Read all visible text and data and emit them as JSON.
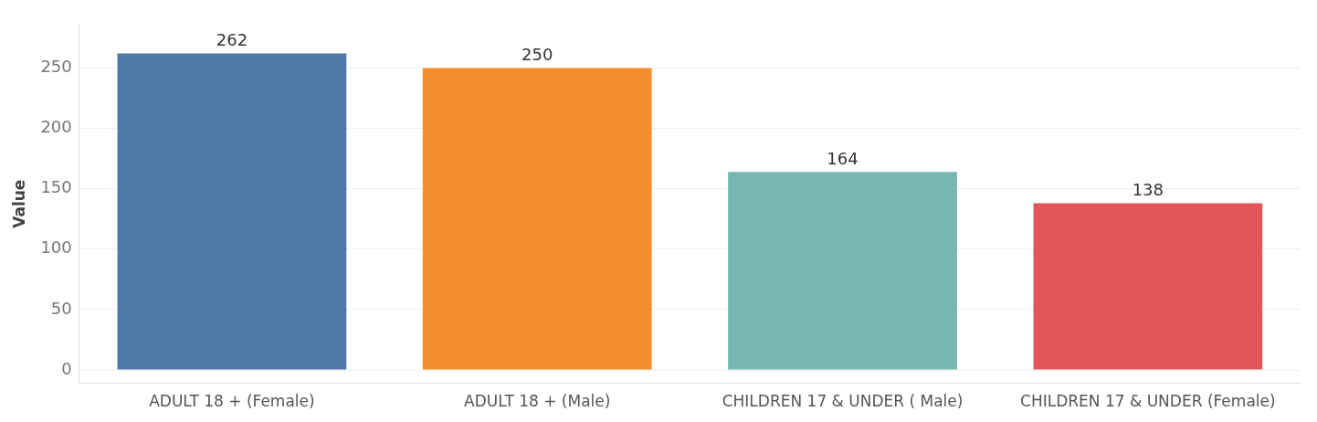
{
  "chart_data": {
    "type": "bar",
    "ylabel": "Value",
    "categories": [
      "ADULT 18 + (Female)",
      "ADULT 18 + (Male)",
      "CHILDREN 17 & UNDER ( Male)",
      "CHILDREN 17 & UNDER (Female)"
    ],
    "values": [
      262,
      250,
      164,
      138
    ],
    "colors": [
      "#4e79a7",
      "#f28e2b",
      "#76b7b2",
      "#e15759"
    ],
    "ylim": [
      -11,
      286
    ],
    "yticks": [
      0,
      50,
      100,
      150,
      200,
      250
    ],
    "grid": "y",
    "data_labels": true
  }
}
